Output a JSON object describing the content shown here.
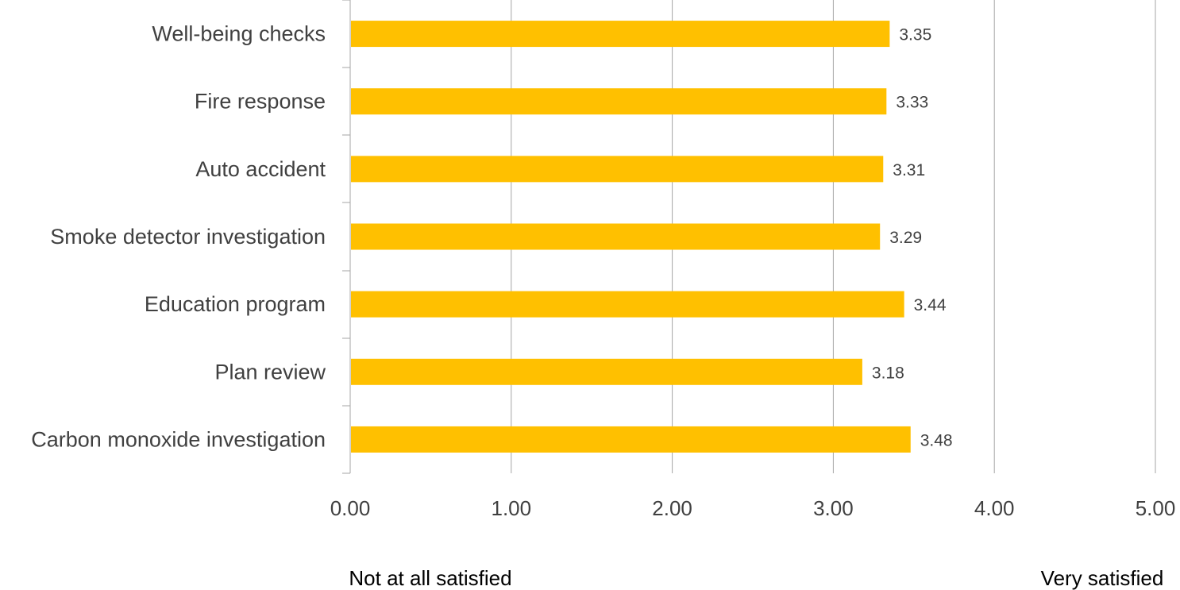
{
  "chart_data": {
    "type": "bar",
    "orientation": "horizontal",
    "title": "",
    "xlabel": "",
    "ylabel": "",
    "categories": [
      "Well-being checks",
      "Fire response",
      "Auto accident",
      "Smoke detector investigation",
      "Education program",
      "Plan review",
      "Carbon monoxide investigation"
    ],
    "values": [
      3.35,
      3.33,
      3.31,
      3.29,
      3.44,
      3.18,
      3.48
    ],
    "data_labels": [
      "3.35",
      "3.33",
      "3.31",
      "3.29",
      "3.44",
      "3.18",
      "3.48"
    ],
    "xlim": [
      0,
      5
    ],
    "x_ticks": [
      0,
      1,
      2,
      3,
      4,
      5
    ],
    "x_tick_labels": [
      "0.00",
      "1.00",
      "2.00",
      "3.00",
      "4.00",
      "5.00"
    ],
    "grid": "vertical",
    "legend": "none",
    "scale_low_label": "Not at all satisfied",
    "scale_high_label": "Very satisfied",
    "bar_color": "#FFC000",
    "grid_color": "#A6A6A6",
    "text_color": "#404040"
  }
}
